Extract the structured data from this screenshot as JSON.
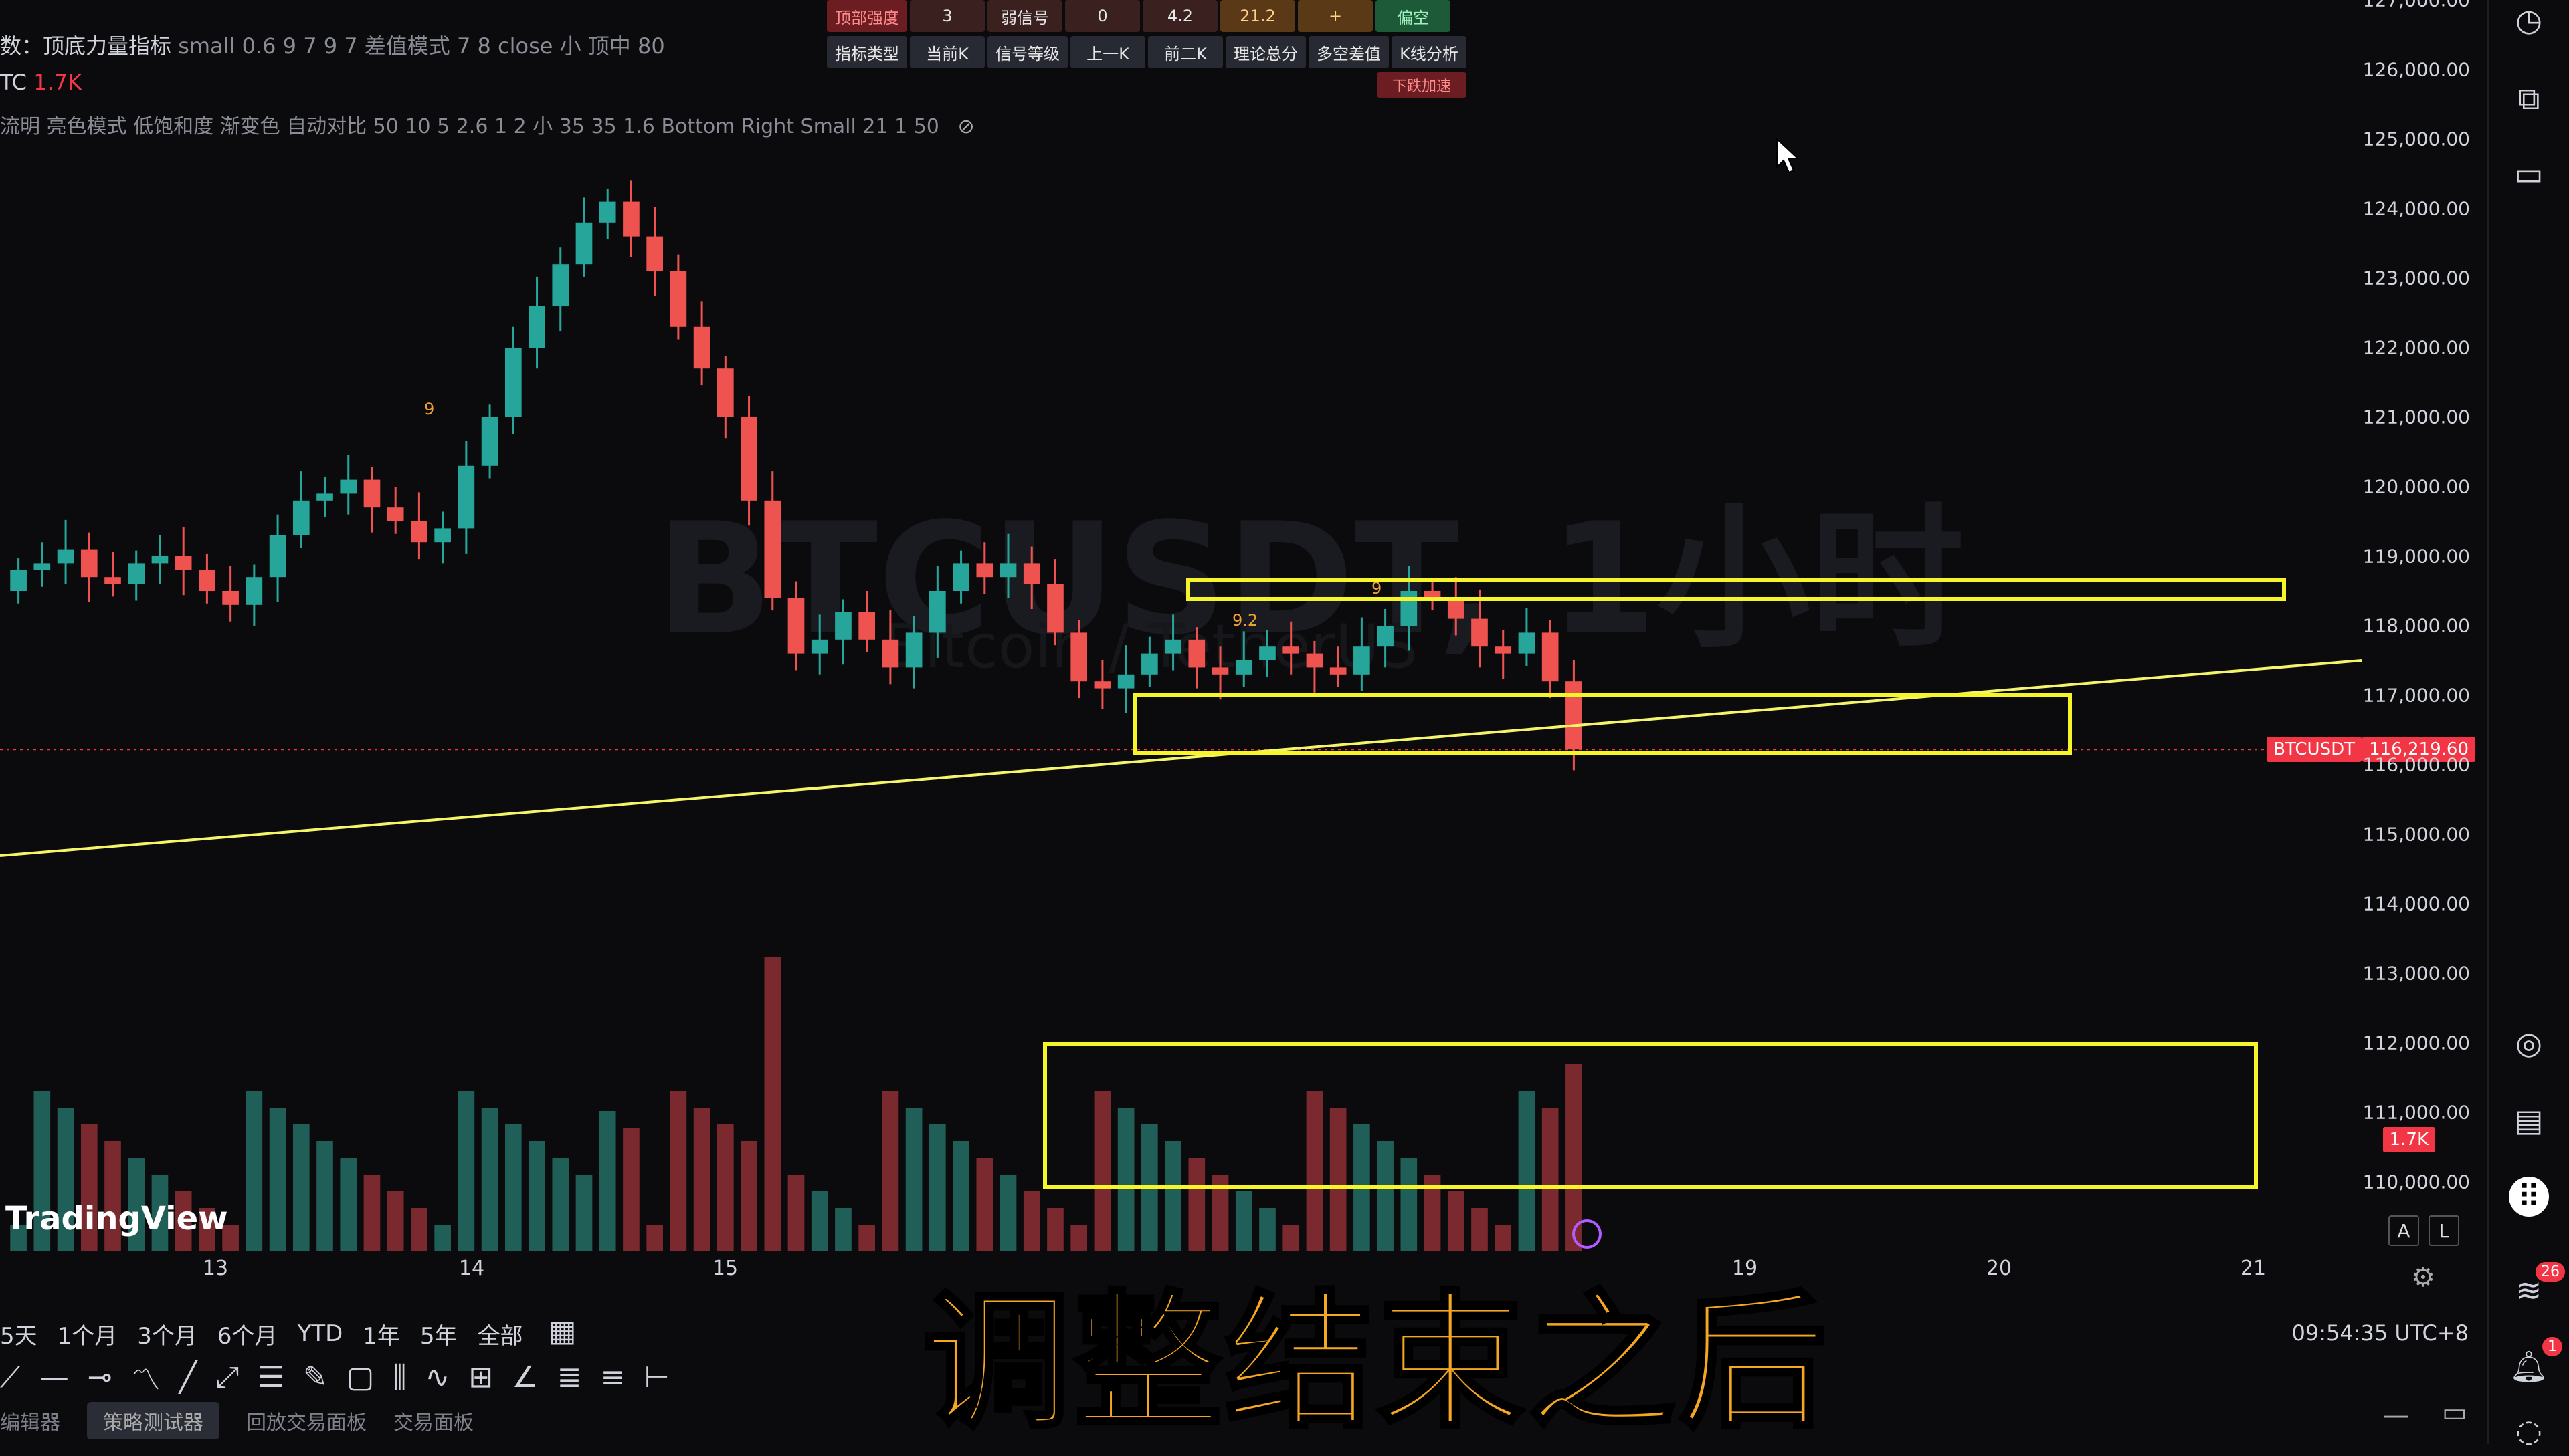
{
  "header": {
    "indicator_name": "顶底力量指标",
    "indicator_prefix": "数：",
    "indicator_params": "small 0.6 9 7 9 7 差值模式 7 8 close 小 顶中 80",
    "symbol_short": "TC",
    "volume_value": "1.7K",
    "style_params": "流明 亮色模式 低饱和度 渐变色 自动对比 50 10 5 2.6 1 2 小 35 35 1.6 Bottom Right Small 21 1 50"
  },
  "signal_table": {
    "row1": [
      "顶部强度",
      "3",
      "弱信号",
      "0",
      "4.2",
      "21.2",
      "+",
      "偏空"
    ],
    "row2": [
      "指标类型",
      "当前K",
      "信号等级",
      "上一K",
      "前二K",
      "理论总分",
      "多空差值",
      "K线分析"
    ],
    "accel": "下跌加速"
  },
  "watermark": {
    "symbol": "BTCUSDT, 1小时",
    "pair": "Bitcoin / TetherUS"
  },
  "price_axis": {
    "ticks": [
      "127,000.00",
      "126,000.00",
      "125,000.00",
      "124,000.00",
      "123,000.00",
      "122,000.00",
      "121,000.00",
      "120,000.00",
      "119,000.00",
      "118,000.00",
      "117,000.00",
      "116,000.00",
      "115,000.00",
      "114,000.00",
      "113,000.00",
      "112,000.00",
      "111,000.00",
      "110,000.00"
    ],
    "current_symbol": "BTCUSDT",
    "current_price": "116,219.60",
    "volume_badge": "1.7K"
  },
  "time_axis": {
    "ticks": [
      "13",
      "14",
      "15",
      "19",
      "20",
      "21"
    ]
  },
  "ranges": [
    "5天",
    "1个月",
    "3个月",
    "6个月",
    "YTD",
    "1年",
    "5年",
    "全部"
  ],
  "clock": "09:54:35 UTC+8",
  "bottom_tabs": [
    "编辑器",
    "策略测试器",
    "回放交易面板",
    "交易面板"
  ],
  "logo": "TradingView",
  "candle_labels": {
    "a": "9",
    "b": "9.2",
    "c": "9"
  },
  "subtitle": "调整结束之后",
  "al_buttons": [
    "A",
    "L"
  ],
  "notifications": {
    "feed": "26",
    "alerts": "1"
  },
  "chart_data": {
    "type": "candlestick",
    "title": "BTCUSDT, 1小时",
    "ylim": [
      109500,
      127000
    ],
    "x_ticks": [
      "13",
      "14",
      "15",
      "19",
      "20",
      "21"
    ],
    "closes": [
      118800,
      118900,
      119100,
      118700,
      118600,
      118900,
      119000,
      118800,
      118500,
      118300,
      118700,
      119300,
      119800,
      119900,
      120100,
      119700,
      119500,
      119200,
      119400,
      120300,
      121000,
      122000,
      122600,
      123200,
      123800,
      124100,
      123600,
      123100,
      122300,
      121700,
      121000,
      119800,
      118400,
      117600,
      117800,
      118200,
      117800,
      117400,
      117900,
      118500,
      118900,
      118700,
      118900,
      118600,
      117900,
      117200,
      117100,
      117300,
      117600,
      117800,
      117400,
      117300,
      117500,
      117700,
      117600,
      117400,
      117300,
      117700,
      118000,
      118500,
      118400,
      118100,
      117700,
      117600,
      117900,
      117200,
      116219
    ]
  }
}
